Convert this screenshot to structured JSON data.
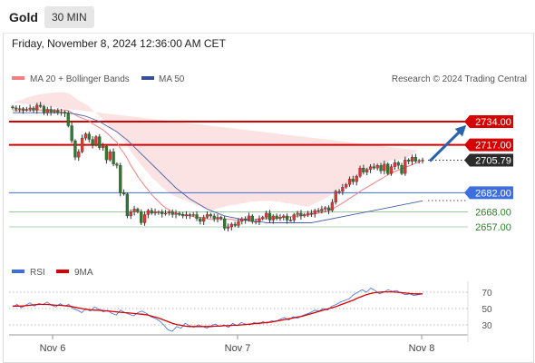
{
  "header": {
    "instrument": "Gold",
    "timeframe": "30 MIN",
    "datetime": "Friday, November 8, 2024 12:36:00 AM CET"
  },
  "legend": {
    "ma20_label": "MA 20 + Bollinger Bands",
    "ma50_label": "MA 50",
    "credit": "Research © 2024 Trading Central",
    "rsi_label": "RSI",
    "ma9_label": "9MA"
  },
  "colors": {
    "red": "#d50000",
    "blue": "#3d6ee0",
    "green": "#2e8b2e",
    "band": "#fcdede",
    "arrow": "#2a64ad",
    "last_bg": "#2b2b2b",
    "ma20": "#f08080",
    "ma50": "#4a5fa8"
  },
  "chart_data": [
    {
      "type": "candlestick",
      "title": "Gold 30 MIN",
      "x_ticks": [
        "Nov 6",
        "Nov 7",
        "Nov 8"
      ],
      "ylim": [
        2646,
        2748
      ],
      "levels": [
        {
          "value": 2734.0,
          "label": "2734.00",
          "style": "resistance"
        },
        {
          "value": 2717.0,
          "label": "2717.00",
          "style": "resistance"
        },
        {
          "value": 2705.79,
          "label": "2705.79",
          "style": "last"
        },
        {
          "value": 2682.0,
          "label": "2682.00",
          "style": "pivot"
        },
        {
          "value": 2668.0,
          "label": "2668.00",
          "style": "support"
        },
        {
          "value": 2657.0,
          "label": "2657.00",
          "style": "support"
        }
      ],
      "close_series": [
        2744,
        2743,
        2743.5,
        2742.5,
        2743,
        2744,
        2742.5,
        2746,
        2745,
        2740.5,
        2743,
        2741,
        2742,
        2740.5,
        2741,
        2740,
        2731,
        2720,
        2708,
        2712,
        2722,
        2725,
        2721,
        2717,
        2723,
        2715,
        2716,
        2706,
        2712,
        2703,
        2702,
        2682,
        2681,
        2665,
        2668,
        2670,
        2668,
        2660,
        2666,
        2669,
        2667,
        2668,
        2668,
        2666.5,
        2667,
        2668,
        2666,
        2667,
        2666,
        2665,
        2666,
        2665.5,
        2666,
        2663,
        2661,
        2664,
        2666,
        2665,
        2663,
        2664,
        2663,
        2656,
        2657,
        2659,
        2658,
        2661,
        2663,
        2662,
        2665,
        2661,
        2661,
        2663,
        2664,
        2667,
        2662,
        2665,
        2663,
        2664,
        2665,
        2662,
        2662,
        2666,
        2667,
        2665,
        2666,
        2667,
        2666.5,
        2669,
        2668.5,
        2670,
        2671,
        2669,
        2675,
        2683,
        2683,
        2686,
        2688,
        2692,
        2690,
        2694,
        2700,
        2697,
        2699,
        2701,
        2700,
        2702,
        2698,
        2703,
        2696,
        2701,
        2704,
        2702,
        2696,
        2706,
        2705,
        2708,
        2705,
        2705.5,
        2705.8
      ],
      "ma20_series": [
        2742,
        2742,
        2742,
        2742,
        2742.5,
        2742.5,
        2742.5,
        2742.5,
        2742.5,
        2742.5,
        2742.5,
        2742.5,
        2742.5,
        2742.5,
        2742.5,
        2742.5,
        2742,
        2740.5,
        2739,
        2737.5,
        2736.5,
        2735.5,
        2734.5,
        2732.5,
        2731,
        2729.5,
        2728,
        2726,
        2723.5,
        2721,
        2719,
        2714.5,
        2711,
        2707,
        2702,
        2698,
        2694,
        2690.5,
        2687,
        2684,
        2680.5,
        2678,
        2675.5,
        2673,
        2671,
        2669.5,
        2668,
        2667,
        2666,
        2666,
        2665.5,
        2665,
        2664.5,
        2664,
        2664,
        2663.5,
        2663,
        2662.5,
        2662.5,
        2662.5,
        2662.5,
        2662.5,
        2662.5,
        2662.5,
        2662,
        2662,
        2662,
        2662,
        2662.5,
        2662.5,
        2662.5,
        2663,
        2663,
        2663,
        2663.5,
        2663.5,
        2663.5,
        2664,
        2664,
        2664,
        2664.5,
        2664.5,
        2665,
        2665,
        2665.5,
        2665.5,
        2666,
        2666.5,
        2667,
        2667.5,
        2668,
        2669,
        2670,
        2671.5,
        2673,
        2674.5,
        2676,
        2678,
        2679.5,
        2681,
        2683,
        2684.5,
        2686,
        2687.5,
        2689,
        2690.5,
        2692,
        2693.5,
        2695,
        2696.5,
        2697.5,
        2698.5,
        2699.5,
        2700.5,
        2701.5,
        2702.5,
        2703.5,
        2704
      ],
      "ma50_series": [
        2740.5,
        2740.5,
        2740.5,
        2740.5,
        2740.5,
        2740.5,
        2740.5,
        2740.5,
        2740.5,
        2740.5,
        2740.5,
        2740.5,
        2740.5,
        2740.5,
        2740.5,
        2740.5,
        2740.3,
        2740,
        2739.5,
        2739,
        2738.5,
        2738,
        2737,
        2736,
        2735,
        2734,
        2732.5,
        2731,
        2729.5,
        2728,
        2726.5,
        2724.5,
        2722.5,
        2720.5,
        2718,
        2715.5,
        2713,
        2710.5,
        2708,
        2705.5,
        2703,
        2700.5,
        2698,
        2695.5,
        2693,
        2690.5,
        2688,
        2685.5,
        2683.5,
        2681.5,
        2679.5,
        2677.5,
        2676,
        2674.5,
        2673,
        2671.5,
        2670,
        2669,
        2668,
        2667,
        2666,
        2665,
        2664.5,
        2664,
        2663.5,
        2663,
        2662.5,
        2662,
        2661.5,
        2661,
        2661,
        2660.5,
        2660.5,
        2660,
        2660,
        2660,
        2660,
        2660,
        2660,
        2660,
        2660,
        2660,
        2660,
        2660,
        2660,
        2660,
        2660,
        2660.5,
        2661,
        2661.5,
        2662,
        2662.5,
        2663,
        2663.5,
        2664,
        2664.5,
        2665,
        2665.5,
        2666,
        2666.5,
        2667,
        2667.5,
        2668,
        2668.5,
        2669,
        2669.5,
        2670,
        2670.5,
        2671,
        2671.5,
        2672,
        2672.5,
        2673,
        2673.5,
        2674,
        2674.5,
        2675,
        2675.5,
        2676
      ],
      "projection": {
        "from": 2705.79,
        "to": 2734.0
      }
    },
    {
      "type": "line",
      "title": "RSI",
      "y_ticks": [
        "70",
        "50",
        "30"
      ],
      "ylim": [
        15,
        80
      ],
      "series": [
        {
          "name": "RSI",
          "values": [
            52,
            55,
            51,
            54,
            57,
            53,
            56,
            55,
            58,
            54,
            52,
            56,
            53,
            55,
            50,
            48,
            45,
            50,
            47,
            52,
            49,
            46,
            48,
            44,
            42,
            48,
            45,
            43,
            41,
            45,
            47,
            44,
            40,
            38,
            35,
            30,
            24,
            22,
            28,
            26,
            32,
            29,
            27,
            30,
            28,
            26,
            29,
            31,
            28,
            30,
            27,
            32,
            29,
            33,
            31,
            30,
            33,
            31,
            34,
            32,
            35,
            34,
            37,
            39,
            36,
            40,
            38,
            41,
            43,
            45,
            48,
            47,
            50,
            48,
            53,
            55,
            58,
            60,
            62,
            67,
            70,
            73,
            70,
            75,
            72,
            68,
            70,
            73,
            71,
            72,
            69,
            67,
            68,
            66,
            67,
            68
          ]
        },
        {
          "name": "9MA",
          "values": [
            53,
            53,
            53,
            53.5,
            54,
            54.5,
            55,
            55,
            55,
            54.5,
            54,
            54,
            53.5,
            53,
            52,
            51,
            50,
            49,
            48.5,
            48,
            48,
            47.5,
            47,
            46.5,
            46,
            45.5,
            45,
            44.5,
            44,
            43.5,
            43,
            42.5,
            41,
            39.5,
            38,
            36,
            34,
            32,
            30.5,
            29.5,
            28.5,
            28,
            28,
            28,
            28,
            28,
            28,
            28.5,
            28.5,
            29,
            29,
            29.5,
            29.5,
            30,
            30.5,
            31,
            31.5,
            32,
            32.5,
            33,
            33.5,
            34.5,
            35.5,
            36.5,
            37.5,
            38.5,
            39.5,
            40.5,
            42,
            43.5,
            45,
            46.5,
            48,
            49.5,
            51,
            52.5,
            54.5,
            56.5,
            58.5,
            60.5,
            63,
            65,
            67,
            68.5,
            69.5,
            70,
            70.5,
            70.5,
            70.5,
            70,
            69.5,
            69,
            68.5,
            68,
            68,
            68
          ]
        }
      ]
    }
  ]
}
